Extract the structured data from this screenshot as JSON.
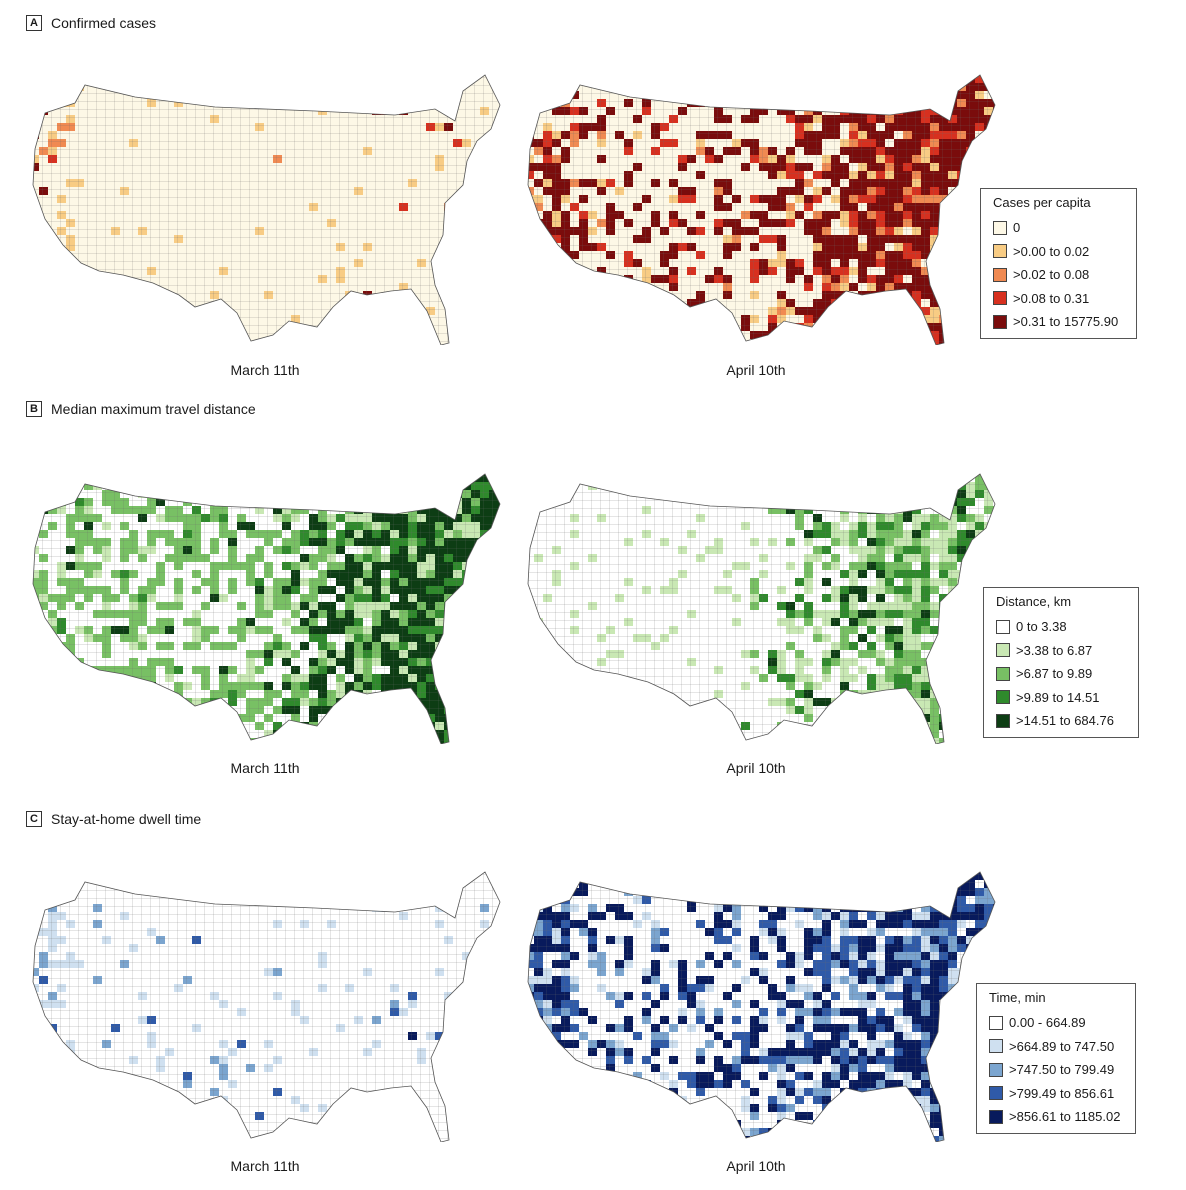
{
  "panels": [
    {
      "letter": "A",
      "title": "Confirmed cases",
      "left_caption": "March 11th",
      "right_caption": "April 10th",
      "legend": {
        "title": "Cases per capita",
        "items": [
          {
            "label": "0",
            "color": "#fdf8e6"
          },
          {
            "label": ">0.00 to 0.02",
            "color": "#f8cc84"
          },
          {
            "label": ">0.02 to 0.08",
            "color": "#f08a52"
          },
          {
            "label": ">0.08 to 0.31",
            "color": "#d7301f"
          },
          {
            "label": ">0.31 to 15775.90",
            "color": "#7a0c0c"
          }
        ]
      }
    },
    {
      "letter": "B",
      "title": "Median maximum travel distance",
      "left_caption": "March 11th",
      "right_caption": "April 10th",
      "legend": {
        "title": "Distance, km",
        "items": [
          {
            "label": "0 to 3.38",
            "color": "#ffffff"
          },
          {
            "label": ">3.38 to 6.87",
            "color": "#c9e8b4"
          },
          {
            "label": ">6.87 to 9.89",
            "color": "#78c064"
          },
          {
            "label": ">9.89 to 14.51",
            "color": "#2f8a2c"
          },
          {
            "label": ">14.51 to 684.76",
            "color": "#0d3d14"
          }
        ]
      }
    },
    {
      "letter": "C",
      "title": "Stay-at-home dwell time",
      "left_caption": "March 11th",
      "right_caption": "April 10th",
      "legend": {
        "title": "Time, min",
        "items": [
          {
            "label": "0.00 - 664.89",
            "color": "#ffffff"
          },
          {
            "label": ">664.89 to 747.50",
            "color": "#cfe0f0"
          },
          {
            "label": ">747.50 to 799.49",
            "color": "#7ba5cf"
          },
          {
            "label": ">799.49 to 856.61",
            "color": "#2f5aa8"
          },
          {
            "label": ">856.61 to 1185.02",
            "color": "#081a5c"
          }
        ]
      }
    }
  ]
}
